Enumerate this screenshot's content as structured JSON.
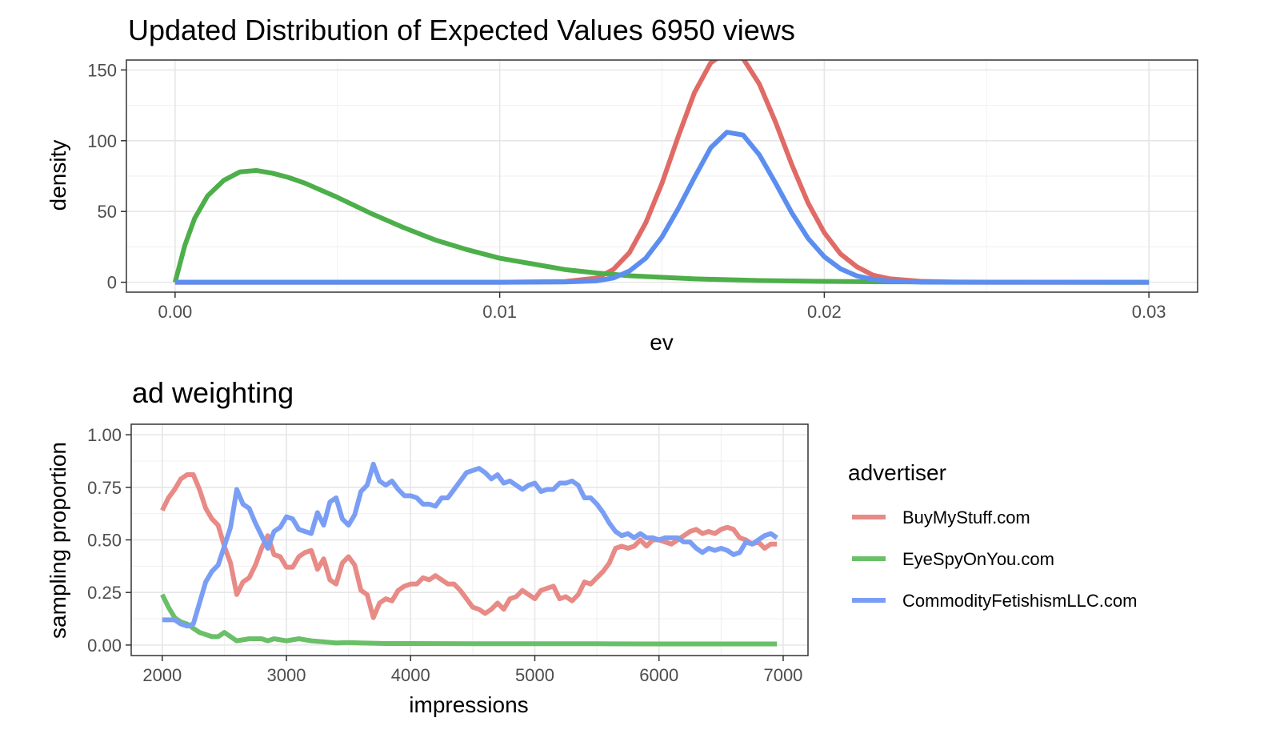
{
  "chart_data": [
    {
      "type": "line",
      "title": "Updated Distribution of Expected Values 6950 views",
      "xlabel": "ev",
      "ylabel": "density",
      "xlim": [
        -0.0015,
        0.0315
      ],
      "ylim": [
        -7,
        157
      ],
      "xticks": [
        0.0,
        0.01,
        0.02,
        0.03
      ],
      "xtick_labels": [
        "0.00",
        "0.01",
        "0.02",
        "0.03"
      ],
      "yticks": [
        0,
        50,
        100,
        150
      ],
      "ytick_labels": [
        "0",
        "50",
        "100",
        "150"
      ],
      "grid": true,
      "series": [
        {
          "color": "#e06b66",
          "x": [
            0.0,
            0.002,
            0.004,
            0.006,
            0.008,
            0.01,
            0.012,
            0.013,
            0.0135,
            0.014,
            0.0145,
            0.015,
            0.0155,
            0.016,
            0.0165,
            0.017,
            0.0175,
            0.018,
            0.0185,
            0.019,
            0.0195,
            0.02,
            0.0205,
            0.021,
            0.0215,
            0.022,
            0.023,
            0.024,
            0.025,
            0.026,
            0.028,
            0.03
          ],
          "y": [
            0,
            0,
            0,
            0,
            0,
            0,
            0.5,
            3,
            9,
            21,
            42,
            70,
            103,
            134,
            155,
            163,
            158,
            140,
            113,
            83,
            56,
            35,
            20,
            11,
            5,
            2.5,
            0.6,
            0.1,
            0,
            0,
            0,
            0
          ]
        },
        {
          "color": "#f0a09c",
          "x": [
            0.0171
          ],
          "y": [
            158
          ]
        },
        {
          "color": "#4daf4a",
          "x": [
            0.0,
            0.0003,
            0.0006,
            0.001,
            0.0015,
            0.002,
            0.0025,
            0.003,
            0.0035,
            0.004,
            0.005,
            0.006,
            0.007,
            0.008,
            0.009,
            0.01,
            0.011,
            0.012,
            0.013,
            0.014,
            0.016,
            0.018,
            0.02,
            0.022,
            0.025,
            0.03
          ],
          "y": [
            0,
            26,
            45,
            61,
            72,
            78,
            79,
            77,
            74,
            70,
            60,
            49,
            39,
            30,
            23,
            17,
            13,
            9,
            6.5,
            4.6,
            2.4,
            1.2,
            0.6,
            0.3,
            0.1,
            0
          ]
        },
        {
          "color": "#5b8ef0",
          "x": [
            0.0,
            0.002,
            0.004,
            0.006,
            0.008,
            0.01,
            0.012,
            0.013,
            0.0135,
            0.014,
            0.0145,
            0.015,
            0.0155,
            0.016,
            0.0165,
            0.017,
            0.0175,
            0.018,
            0.0185,
            0.019,
            0.0195,
            0.02,
            0.0205,
            0.021,
            0.0215,
            0.022,
            0.023,
            0.024,
            0.025,
            0.026,
            0.028,
            0.03
          ],
          "y": [
            0,
            0,
            0,
            0,
            0,
            0,
            0.2,
            1,
            3,
            8,
            17,
            32,
            52,
            74,
            95,
            106,
            104,
            90,
            70,
            49,
            31,
            18,
            9.5,
            4.5,
            2,
            0.8,
            0.1,
            0,
            0,
            0,
            0,
            0
          ]
        }
      ]
    },
    {
      "type": "line",
      "title": "ad weighting",
      "xlabel": "impressions",
      "ylabel": "sampling proportion",
      "xlim": [
        1750,
        7200
      ],
      "ylim": [
        -0.05,
        1.05
      ],
      "xticks": [
        2000,
        3000,
        4000,
        5000,
        6000,
        7000
      ],
      "xtick_labels": [
        "2000",
        "3000",
        "4000",
        "5000",
        "6000",
        "7000"
      ],
      "yticks": [
        0,
        0.25,
        0.5,
        0.75,
        1.0
      ],
      "ytick_labels": [
        "0.00",
        "0.25",
        "0.50",
        "0.75",
        "1.00"
      ],
      "grid": true,
      "legend_title": "advertiser",
      "legend_position": "right",
      "series": [
        {
          "name": "BuyMyStuff.com",
          "color": "#e88a86",
          "x": [
            2000,
            2050,
            2100,
            2150,
            2200,
            2250,
            2300,
            2350,
            2400,
            2450,
            2500,
            2550,
            2600,
            2650,
            2700,
            2750,
            2800,
            2850,
            2900,
            2950,
            3000,
            3050,
            3100,
            3150,
            3200,
            3250,
            3300,
            3350,
            3400,
            3450,
            3500,
            3550,
            3600,
            3650,
            3700,
            3750,
            3800,
            3850,
            3900,
            3950,
            4000,
            4050,
            4100,
            4150,
            4200,
            4250,
            4300,
            4350,
            4400,
            4450,
            4500,
            4550,
            4600,
            4650,
            4700,
            4750,
            4800,
            4850,
            4900,
            4950,
            5000,
            5050,
            5100,
            5150,
            5200,
            5250,
            5300,
            5350,
            5400,
            5450,
            5500,
            5550,
            5600,
            5650,
            5700,
            5750,
            5800,
            5850,
            5900,
            5950,
            6000,
            6050,
            6100,
            6150,
            6200,
            6250,
            6300,
            6350,
            6400,
            6450,
            6500,
            6550,
            6600,
            6650,
            6700,
            6750,
            6800,
            6850,
            6900,
            6950
          ],
          "y": [
            0.64,
            0.7,
            0.74,
            0.79,
            0.81,
            0.81,
            0.74,
            0.65,
            0.6,
            0.57,
            0.47,
            0.39,
            0.24,
            0.3,
            0.32,
            0.38,
            0.46,
            0.52,
            0.43,
            0.42,
            0.37,
            0.37,
            0.42,
            0.44,
            0.45,
            0.36,
            0.41,
            0.31,
            0.29,
            0.39,
            0.42,
            0.38,
            0.26,
            0.24,
            0.13,
            0.2,
            0.22,
            0.21,
            0.26,
            0.28,
            0.29,
            0.29,
            0.32,
            0.31,
            0.33,
            0.31,
            0.29,
            0.29,
            0.26,
            0.22,
            0.18,
            0.17,
            0.15,
            0.17,
            0.2,
            0.17,
            0.22,
            0.23,
            0.26,
            0.24,
            0.22,
            0.26,
            0.27,
            0.28,
            0.22,
            0.23,
            0.21,
            0.24,
            0.3,
            0.29,
            0.32,
            0.35,
            0.39,
            0.46,
            0.47,
            0.46,
            0.47,
            0.5,
            0.47,
            0.5,
            0.5,
            0.49,
            0.48,
            0.5,
            0.52,
            0.54,
            0.55,
            0.53,
            0.54,
            0.53,
            0.55,
            0.56,
            0.55,
            0.51,
            0.5,
            0.48,
            0.49,
            0.46,
            0.48,
            0.48
          ]
        },
        {
          "name": "EyeSpyOnYou.com",
          "color": "#6abf69",
          "x": [
            2000,
            2050,
            2100,
            2150,
            2200,
            2250,
            2300,
            2350,
            2400,
            2450,
            2500,
            2550,
            2600,
            2700,
            2800,
            2850,
            2900,
            3000,
            3100,
            3200,
            3300,
            3400,
            3500,
            3600,
            3800,
            4000,
            4500,
            5000,
            5500,
            6000,
            6500,
            6950
          ],
          "y": [
            0.24,
            0.18,
            0.13,
            0.11,
            0.1,
            0.08,
            0.06,
            0.05,
            0.04,
            0.04,
            0.06,
            0.04,
            0.02,
            0.03,
            0.03,
            0.02,
            0.03,
            0.02,
            0.03,
            0.02,
            0.015,
            0.01,
            0.012,
            0.01,
            0.007,
            0.007,
            0.006,
            0.006,
            0.006,
            0.005,
            0.005,
            0.005
          ]
        },
        {
          "name": "CommodityFetishismLLC.com",
          "color": "#7b9ef5",
          "x": [
            2000,
            2050,
            2100,
            2150,
            2200,
            2250,
            2300,
            2350,
            2400,
            2450,
            2500,
            2550,
            2600,
            2650,
            2700,
            2750,
            2800,
            2850,
            2900,
            2950,
            3000,
            3050,
            3100,
            3150,
            3200,
            3250,
            3300,
            3350,
            3400,
            3450,
            3500,
            3550,
            3600,
            3650,
            3700,
            3750,
            3800,
            3850,
            3900,
            3950,
            4000,
            4050,
            4100,
            4150,
            4200,
            4250,
            4300,
            4350,
            4400,
            4450,
            4500,
            4550,
            4600,
            4650,
            4700,
            4750,
            4800,
            4850,
            4900,
            4950,
            5000,
            5050,
            5100,
            5150,
            5200,
            5250,
            5300,
            5350,
            5400,
            5450,
            5500,
            5550,
            5600,
            5650,
            5700,
            5750,
            5800,
            5850,
            5900,
            5950,
            6000,
            6050,
            6100,
            6150,
            6200,
            6250,
            6300,
            6350,
            6400,
            6450,
            6500,
            6550,
            6600,
            6650,
            6700,
            6750,
            6800,
            6850,
            6900,
            6950
          ],
          "y": [
            0.12,
            0.12,
            0.12,
            0.1,
            0.09,
            0.1,
            0.2,
            0.3,
            0.35,
            0.38,
            0.47,
            0.56,
            0.74,
            0.67,
            0.65,
            0.58,
            0.52,
            0.46,
            0.54,
            0.56,
            0.61,
            0.6,
            0.55,
            0.54,
            0.53,
            0.63,
            0.57,
            0.68,
            0.7,
            0.6,
            0.57,
            0.62,
            0.73,
            0.76,
            0.86,
            0.78,
            0.76,
            0.78,
            0.74,
            0.71,
            0.71,
            0.7,
            0.67,
            0.67,
            0.66,
            0.7,
            0.7,
            0.74,
            0.78,
            0.82,
            0.83,
            0.84,
            0.82,
            0.79,
            0.81,
            0.77,
            0.78,
            0.76,
            0.74,
            0.76,
            0.77,
            0.73,
            0.74,
            0.74,
            0.77,
            0.77,
            0.78,
            0.76,
            0.7,
            0.7,
            0.67,
            0.63,
            0.58,
            0.54,
            0.52,
            0.53,
            0.51,
            0.53,
            0.51,
            0.51,
            0.5,
            0.51,
            0.51,
            0.51,
            0.49,
            0.49,
            0.46,
            0.44,
            0.46,
            0.45,
            0.46,
            0.45,
            0.43,
            0.44,
            0.49,
            0.48,
            0.5,
            0.52,
            0.53,
            0.51
          ]
        }
      ]
    }
  ]
}
